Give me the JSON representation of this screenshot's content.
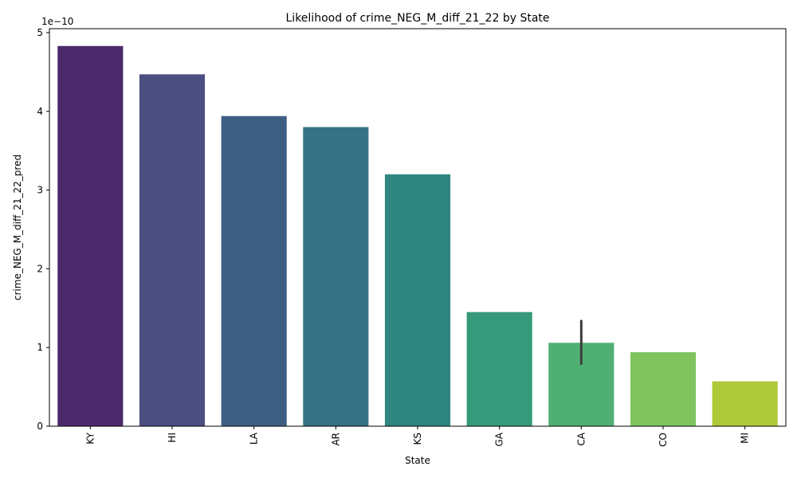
{
  "chart_data": {
    "type": "bar",
    "title": "Likelihood of crime_NEG_M_diff_21_22 by State",
    "xlabel": "State",
    "ylabel": "crime_NEG_M_diff_21_22_pred",
    "y_offset_label": "1e−10",
    "y_scale_exponent": -10,
    "ylim": [
      0,
      5.05
    ],
    "yticks": [
      0,
      1,
      2,
      3,
      4,
      5
    ],
    "ytick_labels": [
      "0",
      "1",
      "2",
      "3",
      "4",
      "5"
    ],
    "categories": [
      "KY",
      "HI",
      "LA",
      "AR",
      "KS",
      "GA",
      "CA",
      "CO",
      "MI"
    ],
    "values": [
      4.83,
      4.47,
      3.94,
      3.8,
      3.2,
      1.45,
      1.06,
      0.94,
      0.57
    ],
    "error_bars": [
      null,
      null,
      null,
      null,
      null,
      null,
      [
        0.78,
        1.35
      ],
      null,
      null
    ],
    "colors": [
      "#4b2a6b",
      "#4a4e80",
      "#3e5e84",
      "#367284",
      "#2f8580",
      "#35997a",
      "#50b073",
      "#7fc45f",
      "#afca38"
    ],
    "grid": false,
    "legend": "none"
  }
}
